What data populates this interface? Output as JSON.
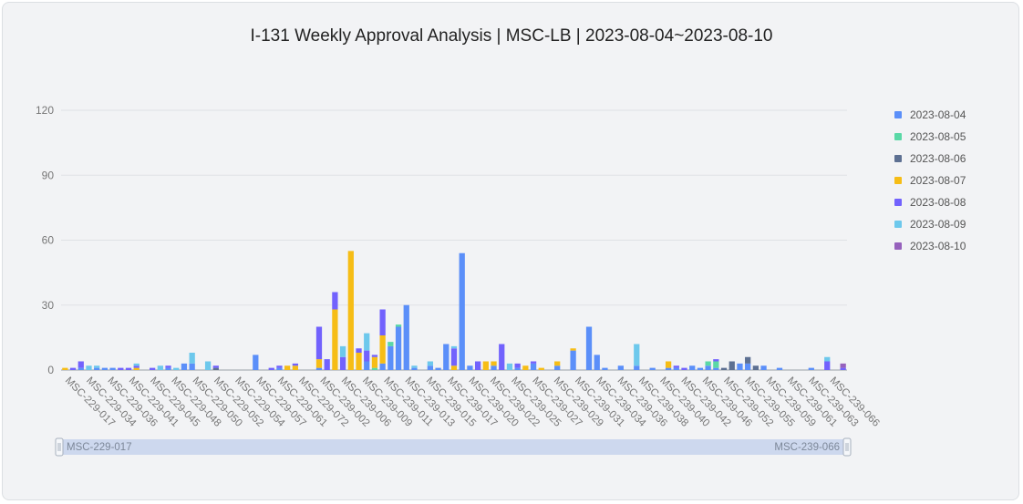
{
  "title": "I-131 Weekly Approval Analysis | MSC-LB | 2023-08-04~2023-08-10",
  "chart_data": {
    "type": "bar",
    "stacked": true,
    "ylim": [
      0,
      120
    ],
    "yticks": [
      0,
      30,
      60,
      90,
      120
    ],
    "grid": true,
    "legend_position": "right",
    "x_tick_labels": [
      "MSC-229-017",
      "MSC-229-034",
      "MSC-229-036",
      "MSC-229-041",
      "MSC-229-045",
      "MSC-229-048",
      "MSC-229-050",
      "MSC-229-052",
      "MSC-229-054",
      "MSC-229-057",
      "MSC-229-061",
      "MSC-229-072",
      "MSC-239-002",
      "MSC-239-006",
      "MSC-239-009",
      "MSC-239-011",
      "MSC-239-013",
      "MSC-239-015",
      "MSC-239-017",
      "MSC-239-020",
      "MSC-239-022",
      "MSC-239-025",
      "MSC-239-027",
      "MSC-239-029",
      "MSC-239-031",
      "MSC-239-034",
      "MSC-239-036",
      "MSC-239-038",
      "MSC-239-040",
      "MSC-239-042",
      "MSC-239-046",
      "MSC-239-052",
      "MSC-239-055",
      "MSC-239-059",
      "MSC-239-061",
      "MSC-239-063",
      "MSC-239-066"
    ],
    "series": [
      {
        "name": "2023-08-04",
        "color": "#5b8ff9",
        "values": [
          0,
          0,
          1,
          0,
          1,
          1,
          1,
          0,
          0,
          0,
          0,
          0,
          0,
          1,
          0,
          3,
          3,
          0,
          0,
          0,
          0,
          0,
          0,
          0,
          7,
          0,
          0,
          1,
          0,
          0,
          0,
          0,
          1,
          0,
          0,
          0,
          0,
          0,
          4,
          0,
          3,
          11,
          20,
          30,
          1,
          0,
          2,
          1,
          12,
          0,
          54,
          2,
          0,
          0,
          2,
          0,
          0,
          1,
          0,
          3,
          0,
          0,
          2,
          0,
          9,
          0,
          20,
          7,
          1,
          0,
          2,
          0,
          2,
          0,
          1,
          0,
          1,
          1,
          0,
          2,
          1,
          2,
          1,
          0,
          0,
          3,
          3,
          0,
          2,
          0,
          1,
          0,
          0,
          0,
          1,
          0,
          0,
          0,
          0
        ]
      },
      {
        "name": "2023-08-05",
        "color": "#5ad8a6",
        "values": [
          0,
          0,
          0,
          0,
          0,
          0,
          0,
          0,
          0,
          0,
          0,
          0,
          0,
          0,
          0,
          0,
          0,
          0,
          0,
          0,
          0,
          0,
          0,
          0,
          0,
          0,
          0,
          0,
          0,
          0,
          0,
          0,
          0,
          0,
          0,
          0,
          0,
          0,
          0,
          1,
          0,
          2,
          1,
          0,
          0,
          0,
          0,
          0,
          0,
          0,
          0,
          0,
          0,
          0,
          0,
          0,
          0,
          0,
          0,
          0,
          0,
          0,
          0,
          0,
          0,
          0,
          0,
          0,
          0,
          0,
          0,
          0,
          0,
          0,
          0,
          0,
          0,
          0,
          0,
          0,
          0,
          2,
          3,
          0,
          0,
          0,
          0,
          0,
          0,
          0,
          0,
          0,
          0,
          0,
          0,
          0,
          0,
          0,
          0,
          0
        ]
      },
      {
        "name": "2023-08-06",
        "color": "#5d7092",
        "values": [
          0,
          0,
          0,
          0,
          0,
          0,
          0,
          0,
          0,
          0,
          0,
          0,
          0,
          0,
          0,
          0,
          0,
          0,
          0,
          1,
          0,
          0,
          0,
          0,
          0,
          0,
          0,
          0,
          0,
          0,
          0,
          0,
          0,
          0,
          0,
          0,
          0,
          0,
          0,
          0,
          0,
          0,
          0,
          0,
          0,
          0,
          0,
          0,
          0,
          0,
          0,
          0,
          0,
          0,
          0,
          0,
          0,
          0,
          0,
          0,
          0,
          0,
          0,
          0,
          0,
          0,
          0,
          0,
          0,
          0,
          0,
          0,
          0,
          0,
          0,
          0,
          0,
          0,
          0,
          0,
          0,
          0,
          0,
          1,
          4,
          0,
          3,
          2,
          0,
          0,
          0,
          0,
          0,
          0,
          0,
          0,
          0,
          0,
          0
        ]
      },
      {
        "name": "2023-08-07",
        "color": "#f6bd16",
        "values": [
          1,
          0,
          0,
          0,
          0,
          0,
          0,
          0,
          0,
          1,
          0,
          0,
          0,
          0,
          0,
          0,
          0,
          0,
          0,
          0,
          0,
          0,
          0,
          0,
          0,
          0,
          0,
          0,
          2,
          2,
          0,
          0,
          4,
          0,
          28,
          0,
          55,
          8,
          0,
          5,
          13,
          0,
          0,
          0,
          0,
          0,
          0,
          0,
          0,
          2,
          0,
          0,
          0,
          4,
          2,
          0,
          0,
          0,
          2,
          0,
          1,
          0,
          2,
          0,
          1,
          0,
          0,
          0,
          0,
          0,
          0,
          0,
          0,
          0,
          0,
          0,
          3,
          0,
          0,
          0,
          0,
          0,
          0,
          0,
          0,
          0,
          0,
          0,
          0,
          0,
          0,
          0,
          0,
          0,
          0
        ]
      },
      {
        "name": "2023-08-08",
        "color": "#7262fd",
        "values": [
          0,
          1,
          3,
          0,
          0,
          0,
          0,
          1,
          1,
          1,
          0,
          1,
          0,
          1,
          0,
          0,
          0,
          0,
          0,
          1,
          0,
          0,
          0,
          0,
          0,
          0,
          1,
          1,
          0,
          1,
          0,
          0,
          15,
          5,
          8,
          6,
          0,
          2,
          5,
          1,
          12,
          0,
          0,
          0,
          0,
          0,
          0,
          0,
          0,
          8,
          0,
          0,
          4,
          0,
          0,
          12,
          0,
          2,
          0,
          1,
          0,
          0,
          0,
          0,
          0,
          0,
          0,
          0,
          0,
          0,
          0,
          0,
          0,
          0,
          0,
          0,
          0,
          1,
          1,
          0,
          0,
          0,
          1,
          0,
          0,
          0,
          0,
          0,
          0,
          0,
          0,
          0,
          0,
          0,
          0,
          0,
          4,
          0,
          1
        ]
      },
      {
        "name": "2023-08-09",
        "color": "#6dc8ec",
        "values": [
          0,
          0,
          0,
          2,
          1,
          0,
          0,
          0,
          0,
          1,
          0,
          0,
          2,
          0,
          1,
          0,
          5,
          0,
          4,
          0,
          0,
          0,
          0,
          0,
          0,
          0,
          0,
          0,
          0,
          0,
          0,
          0,
          0,
          0,
          0,
          5,
          0,
          0,
          8,
          0,
          0,
          0,
          0,
          0,
          1,
          0,
          2,
          0,
          0,
          1,
          0,
          0,
          0,
          0,
          0,
          0,
          3,
          0,
          0,
          0,
          0,
          0,
          0,
          0,
          0,
          0,
          0,
          0,
          0,
          0,
          0,
          0,
          10,
          0,
          0,
          0,
          0,
          0,
          0,
          0,
          0,
          0,
          0,
          0,
          0,
          0,
          0,
          0,
          0,
          0,
          0,
          0,
          0,
          0,
          0,
          0,
          2,
          0,
          0
        ]
      },
      {
        "name": "2023-08-10",
        "color": "#9661bc",
        "values": [
          0,
          0,
          0,
          0,
          0,
          0,
          0,
          0,
          0,
          0,
          0,
          0,
          0,
          0,
          0,
          0,
          0,
          0,
          0,
          0,
          0,
          0,
          0,
          0,
          0,
          0,
          0,
          0,
          0,
          0,
          0,
          0,
          0,
          0,
          0,
          0,
          0,
          0,
          0,
          0,
          0,
          0,
          0,
          0,
          0,
          0,
          0,
          0,
          0,
          0,
          0,
          0,
          0,
          0,
          0,
          0,
          0,
          0,
          0,
          0,
          0,
          0,
          0,
          0,
          0,
          0,
          0,
          0,
          0,
          0,
          0,
          0,
          0,
          0,
          0,
          0,
          0,
          0,
          0,
          0,
          0,
          0,
          0,
          0,
          0,
          0,
          0,
          0,
          0,
          0,
          0,
          0,
          0,
          0,
          0,
          0,
          0,
          0,
          2
        ]
      }
    ]
  },
  "slider": {
    "start_label": "MSC-229-017",
    "end_label": "MSC-239-066"
  }
}
